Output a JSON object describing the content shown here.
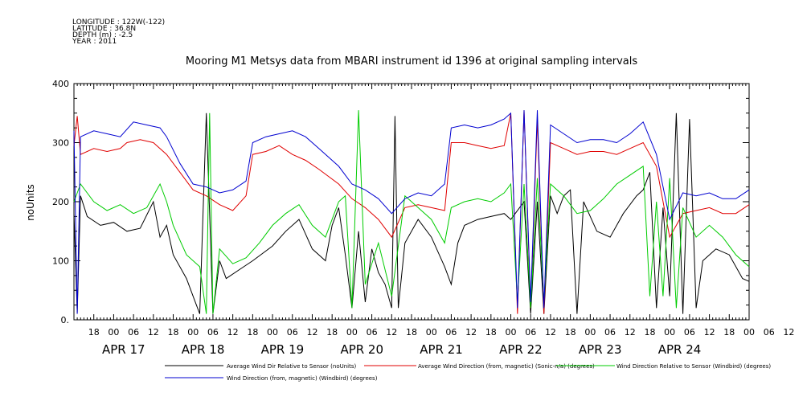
{
  "meta_lines": [
    "LONGITUDE : 122W(-122)",
    "LATITUDE : 36.8N",
    "DEPTH (m) : -2.5",
    "YEAR : 2011"
  ],
  "chart_data": {
    "type": "line",
    "title": "Mooring M1 Metsys data from MBARI instrument id 1396 at original sampling intervals",
    "ylabel": "noUnits",
    "xlabel": "",
    "ylim": [
      0,
      400
    ],
    "y_ticks": [
      "0.",
      "100",
      "200",
      "300",
      "400"
    ],
    "x_range_hours": [
      0,
      204
    ],
    "x_start": "APR 16 12:00",
    "hour_ticks": [
      "18",
      "00",
      "06",
      "12",
      "18",
      "00",
      "06",
      "12",
      "18",
      "00",
      "06",
      "12",
      "18",
      "00",
      "06",
      "12",
      "18",
      "00",
      "06",
      "12",
      "18",
      "00",
      "06",
      "12",
      "18",
      "00",
      "06",
      "12",
      "18",
      "00",
      "06",
      "12",
      "18",
      "00",
      "06",
      "12"
    ],
    "day_labels": [
      "APR 17",
      "APR 18",
      "APR 19",
      "APR 20",
      "APR 21",
      "APR 22",
      "APR 23",
      "APR 24"
    ],
    "grid": false,
    "legend_placement": "bottom",
    "series": [
      {
        "name": "Average Wind Dir Relative to Sensor (noUnits)",
        "color": "#000000",
        "points": [
          [
            0,
            180
          ],
          [
            1,
            12
          ],
          [
            2,
            210
          ],
          [
            4,
            175
          ],
          [
            8,
            160
          ],
          [
            12,
            165
          ],
          [
            16,
            150
          ],
          [
            20,
            155
          ],
          [
            24,
            200
          ],
          [
            26,
            140
          ],
          [
            28,
            160
          ],
          [
            30,
            110
          ],
          [
            34,
            70
          ],
          [
            36,
            40
          ],
          [
            38,
            10
          ],
          [
            40,
            350
          ],
          [
            42,
            10
          ],
          [
            44,
            100
          ],
          [
            46,
            70
          ],
          [
            50,
            85
          ],
          [
            54,
            100
          ],
          [
            60,
            125
          ],
          [
            64,
            150
          ],
          [
            68,
            170
          ],
          [
            72,
            120
          ],
          [
            76,
            100
          ],
          [
            78,
            160
          ],
          [
            80,
            190
          ],
          [
            82,
            110
          ],
          [
            84,
            20
          ],
          [
            86,
            150
          ],
          [
            88,
            30
          ],
          [
            90,
            120
          ],
          [
            92,
            80
          ],
          [
            94,
            60
          ],
          [
            96,
            20
          ],
          [
            97,
            345
          ],
          [
            98,
            20
          ],
          [
            100,
            130
          ],
          [
            104,
            170
          ],
          [
            108,
            140
          ],
          [
            112,
            90
          ],
          [
            114,
            60
          ],
          [
            116,
            130
          ],
          [
            118,
            160
          ],
          [
            122,
            170
          ],
          [
            126,
            175
          ],
          [
            130,
            180
          ],
          [
            132,
            170
          ],
          [
            136,
            200
          ],
          [
            138,
            10
          ],
          [
            140,
            200
          ],
          [
            142,
            10
          ],
          [
            144,
            210
          ],
          [
            146,
            180
          ],
          [
            148,
            210
          ],
          [
            150,
            220
          ],
          [
            152,
            10
          ],
          [
            154,
            200
          ],
          [
            158,
            150
          ],
          [
            162,
            140
          ],
          [
            166,
            180
          ],
          [
            170,
            210
          ],
          [
            172,
            220
          ],
          [
            174,
            250
          ],
          [
            176,
            20
          ],
          [
            178,
            190
          ],
          [
            180,
            40
          ],
          [
            182,
            350
          ],
          [
            184,
            10
          ],
          [
            186,
            340
          ],
          [
            188,
            20
          ],
          [
            190,
            100
          ],
          [
            194,
            120
          ],
          [
            198,
            110
          ],
          [
            202,
            70
          ],
          [
            204,
            65
          ]
        ]
      },
      {
        "name": "Average Wind Direction (from, magnetic) (Sonic-n/a) (degrees)",
        "color": "#e00000",
        "points": [
          [
            0,
            295
          ],
          [
            1,
            345
          ],
          [
            2,
            280
          ],
          [
            6,
            290
          ],
          [
            10,
            285
          ],
          [
            14,
            290
          ],
          [
            16,
            300
          ],
          [
            20,
            305
          ],
          [
            24,
            300
          ],
          [
            28,
            280
          ],
          [
            32,
            250
          ],
          [
            36,
            220
          ],
          [
            40,
            210
          ],
          [
            44,
            195
          ],
          [
            48,
            185
          ],
          [
            52,
            210
          ],
          [
            54,
            280
          ],
          [
            58,
            285
          ],
          [
            62,
            295
          ],
          [
            66,
            280
          ],
          [
            70,
            270
          ],
          [
            74,
            255
          ],
          [
            80,
            230
          ],
          [
            84,
            205
          ],
          [
            88,
            190
          ],
          [
            92,
            170
          ],
          [
            96,
            140
          ],
          [
            100,
            190
          ],
          [
            104,
            195
          ],
          [
            108,
            190
          ],
          [
            112,
            185
          ],
          [
            114,
            300
          ],
          [
            118,
            300
          ],
          [
            122,
            295
          ],
          [
            126,
            290
          ],
          [
            130,
            295
          ],
          [
            132,
            350
          ],
          [
            134,
            10
          ],
          [
            136,
            355
          ],
          [
            138,
            20
          ],
          [
            140,
            340
          ],
          [
            142,
            10
          ],
          [
            144,
            300
          ],
          [
            148,
            290
          ],
          [
            152,
            280
          ],
          [
            156,
            285
          ],
          [
            160,
            285
          ],
          [
            164,
            280
          ],
          [
            168,
            290
          ],
          [
            172,
            300
          ],
          [
            176,
            260
          ],
          [
            180,
            140
          ],
          [
            184,
            180
          ],
          [
            188,
            185
          ],
          [
            192,
            190
          ],
          [
            196,
            180
          ],
          [
            200,
            180
          ],
          [
            204,
            195
          ]
        ]
      },
      {
        "name": "Wind Direction Relative to Sensor (Windbird) (degrees)",
        "color": "#00cc00",
        "points": [
          [
            0,
            200
          ],
          [
            2,
            230
          ],
          [
            6,
            200
          ],
          [
            10,
            185
          ],
          [
            14,
            195
          ],
          [
            18,
            180
          ],
          [
            22,
            190
          ],
          [
            26,
            230
          ],
          [
            28,
            200
          ],
          [
            30,
            160
          ],
          [
            34,
            110
          ],
          [
            38,
            90
          ],
          [
            40,
            10
          ],
          [
            41,
            350
          ],
          [
            42,
            10
          ],
          [
            44,
            120
          ],
          [
            48,
            95
          ],
          [
            52,
            105
          ],
          [
            56,
            130
          ],
          [
            60,
            160
          ],
          [
            64,
            180
          ],
          [
            68,
            195
          ],
          [
            72,
            160
          ],
          [
            76,
            140
          ],
          [
            80,
            200
          ],
          [
            82,
            210
          ],
          [
            84,
            20
          ],
          [
            86,
            355
          ],
          [
            88,
            60
          ],
          [
            92,
            130
          ],
          [
            96,
            40
          ],
          [
            100,
            210
          ],
          [
            104,
            190
          ],
          [
            108,
            170
          ],
          [
            112,
            130
          ],
          [
            114,
            190
          ],
          [
            118,
            200
          ],
          [
            122,
            205
          ],
          [
            126,
            200
          ],
          [
            130,
            215
          ],
          [
            132,
            230
          ],
          [
            134,
            30
          ],
          [
            136,
            230
          ],
          [
            138,
            20
          ],
          [
            140,
            240
          ],
          [
            142,
            30
          ],
          [
            144,
            230
          ],
          [
            148,
            210
          ],
          [
            152,
            180
          ],
          [
            156,
            185
          ],
          [
            160,
            205
          ],
          [
            164,
            230
          ],
          [
            168,
            245
          ],
          [
            172,
            260
          ],
          [
            174,
            40
          ],
          [
            176,
            200
          ],
          [
            178,
            40
          ],
          [
            180,
            240
          ],
          [
            182,
            20
          ],
          [
            184,
            190
          ],
          [
            188,
            140
          ],
          [
            192,
            160
          ],
          [
            196,
            140
          ],
          [
            200,
            110
          ],
          [
            204,
            90
          ]
        ]
      },
      {
        "name": "Wind Direction (from, magnetic) (Windbird) (degrees)",
        "color": "#0000d0",
        "points": [
          [
            0,
            320
          ],
          [
            1,
            10
          ],
          [
            2,
            310
          ],
          [
            6,
            320
          ],
          [
            10,
            315
          ],
          [
            14,
            310
          ],
          [
            18,
            335
          ],
          [
            22,
            330
          ],
          [
            26,
            325
          ],
          [
            28,
            310
          ],
          [
            32,
            265
          ],
          [
            36,
            230
          ],
          [
            40,
            225
          ],
          [
            44,
            215
          ],
          [
            48,
            220
          ],
          [
            52,
            235
          ],
          [
            54,
            300
          ],
          [
            58,
            310
          ],
          [
            62,
            315
          ],
          [
            66,
            320
          ],
          [
            70,
            310
          ],
          [
            74,
            290
          ],
          [
            80,
            260
          ],
          [
            84,
            230
          ],
          [
            88,
            220
          ],
          [
            92,
            205
          ],
          [
            96,
            180
          ],
          [
            100,
            205
          ],
          [
            104,
            215
          ],
          [
            108,
            210
          ],
          [
            112,
            230
          ],
          [
            114,
            325
          ],
          [
            118,
            330
          ],
          [
            122,
            325
          ],
          [
            126,
            330
          ],
          [
            130,
            340
          ],
          [
            132,
            350
          ],
          [
            134,
            20
          ],
          [
            136,
            355
          ],
          [
            138,
            30
          ],
          [
            140,
            355
          ],
          [
            142,
            20
          ],
          [
            144,
            330
          ],
          [
            148,
            315
          ],
          [
            152,
            300
          ],
          [
            156,
            305
          ],
          [
            160,
            305
          ],
          [
            164,
            300
          ],
          [
            168,
            315
          ],
          [
            172,
            335
          ],
          [
            176,
            280
          ],
          [
            180,
            170
          ],
          [
            184,
            215
          ],
          [
            188,
            210
          ],
          [
            192,
            215
          ],
          [
            196,
            205
          ],
          [
            200,
            205
          ],
          [
            204,
            220
          ]
        ]
      }
    ]
  }
}
